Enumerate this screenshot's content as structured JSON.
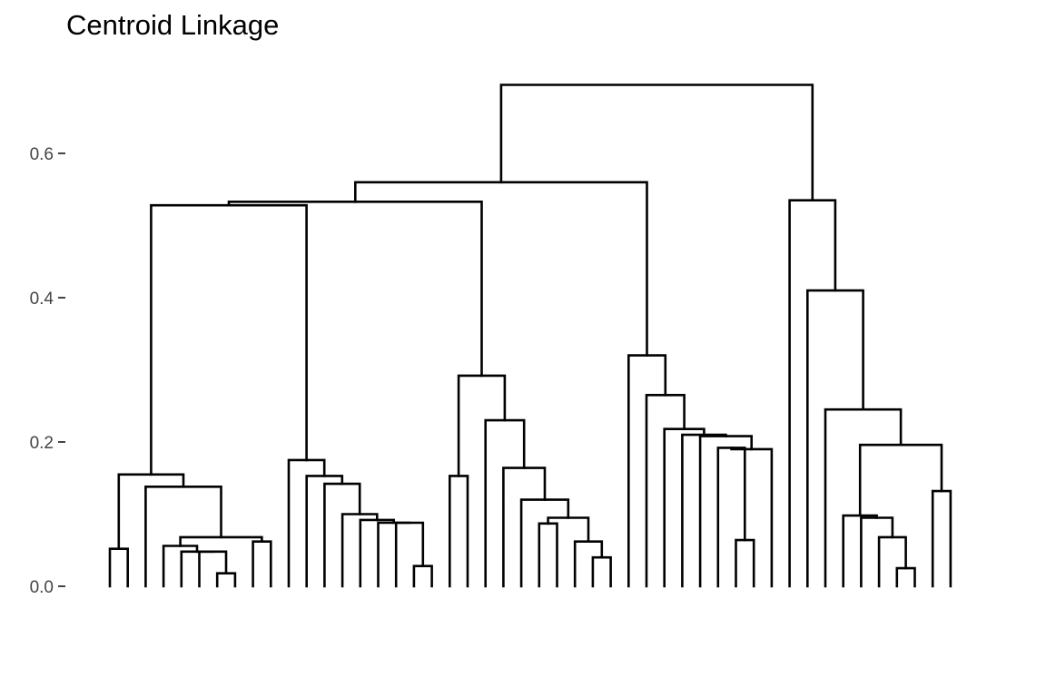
{
  "chart_data": {
    "type": "dendrogram",
    "title": "Centroid Linkage",
    "xlabel": "",
    "ylabel": "",
    "ylim": [
      0,
      0.7
    ],
    "grid": false,
    "y_ticks": [
      {
        "value": 0.0,
        "label": "0.0"
      },
      {
        "value": 0.2,
        "label": "0.2"
      },
      {
        "value": 0.4,
        "label": "0.4"
      },
      {
        "value": 0.6,
        "label": "0.6"
      }
    ],
    "leaf_count": 50,
    "tree": {
      "h": 0.695,
      "c": [
        {
          "h": 0.56,
          "c": [
            {
              "h": 0.533,
              "c": [
                {
                  "h": 0.528,
                  "c": [
                    {
                      "h": 0.155,
                      "c": [
                        {
                          "h": 0.052,
                          "c": [
                            {
                              "leaf": 1
                            },
                            {
                              "leaf": 2
                            }
                          ]
                        },
                        {
                          "h": 0.138,
                          "c": [
                            {
                              "leaf": 3
                            },
                            {
                              "h": 0.068,
                              "c": [
                                {
                                  "h": 0.056,
                                  "c": [
                                    {
                                      "leaf": 4
                                    },
                                    {
                                      "h": 0.048,
                                      "c": [
                                        {
                                          "leaf": 5
                                        },
                                        {
                                          "h": 0.048,
                                          "c": [
                                            {
                                              "leaf": 6
                                            },
                                            {
                                              "h": 0.018,
                                              "c": [
                                                {
                                                  "leaf": 7
                                                },
                                                {
                                                  "leaf": 8
                                                }
                                              ]
                                            }
                                          ]
                                        }
                                      ]
                                    }
                                  ]
                                },
                                {
                                  "h": 0.062,
                                  "c": [
                                    {
                                      "leaf": 9
                                    },
                                    {
                                      "leaf": 10
                                    }
                                  ]
                                }
                              ]
                            }
                          ]
                        }
                      ]
                    },
                    {
                      "h": 0.175,
                      "c": [
                        {
                          "leaf": 11
                        },
                        {
                          "h": 0.153,
                          "c": [
                            {
                              "leaf": 12
                            },
                            {
                              "h": 0.142,
                              "c": [
                                {
                                  "leaf": 13
                                },
                                {
                                  "h": 0.1,
                                  "c": [
                                    {
                                      "leaf": 14
                                    },
                                    {
                                      "h": 0.092,
                                      "c": [
                                        {
                                          "leaf": 15
                                        },
                                        {
                                          "h": 0.088,
                                          "c": [
                                            {
                                              "leaf": 16
                                            },
                                            {
                                              "h": 0.088,
                                              "c": [
                                                {
                                                  "leaf": 17
                                                },
                                                {
                                                  "h": 0.028,
                                                  "c": [
                                                    {
                                                      "leaf": 18
                                                    },
                                                    {
                                                      "leaf": 19
                                                    }
                                                  ]
                                                }
                                              ]
                                            }
                                          ]
                                        }
                                      ]
                                    }
                                  ]
                                }
                              ]
                            }
                          ]
                        }
                      ]
                    }
                  ]
                },
                {
                  "h": 0.292,
                  "c": [
                    {
                      "h": 0.153,
                      "c": [
                        {
                          "leaf": 20
                        },
                        {
                          "leaf": 21
                        }
                      ]
                    },
                    {
                      "h": 0.23,
                      "c": [
                        {
                          "leaf": 22
                        },
                        {
                          "h": 0.164,
                          "c": [
                            {
                              "leaf": 23
                            },
                            {
                              "h": 0.12,
                              "c": [
                                {
                                  "leaf": 24
                                },
                                {
                                  "h": 0.095,
                                  "c": [
                                    {
                                      "h": 0.087,
                                      "c": [
                                        {
                                          "leaf": 25
                                        },
                                        {
                                          "leaf": 26
                                        }
                                      ]
                                    },
                                    {
                                      "h": 0.062,
                                      "c": [
                                        {
                                          "leaf": 27
                                        },
                                        {
                                          "h": 0.04,
                                          "c": [
                                            {
                                              "leaf": 28
                                            },
                                            {
                                              "leaf": 29
                                            }
                                          ]
                                        }
                                      ]
                                    }
                                  ]
                                }
                              ]
                            }
                          ]
                        }
                      ]
                    }
                  ]
                }
              ]
            },
            {
              "h": 0.32,
              "c": [
                {
                  "leaf": 30
                },
                {
                  "h": 0.265,
                  "c": [
                    {
                      "leaf": 31
                    },
                    {
                      "h": 0.218,
                      "c": [
                        {
                          "leaf": 32
                        },
                        {
                          "h": 0.21,
                          "c": [
                            {
                              "leaf": 33
                            },
                            {
                              "h": 0.208,
                              "c": [
                                {
                                  "leaf": 34
                                },
                                {
                                  "h": 0.19,
                                  "c": [
                                    {
                                      "h": 0.192,
                                      "c": [
                                        {
                                          "leaf": 35
                                        },
                                        {
                                          "h": 0.064,
                                          "c": [
                                            {
                                              "leaf": 36
                                            },
                                            {
                                              "leaf": 37
                                            }
                                          ]
                                        }
                                      ]
                                    },
                                    {
                                      "leaf": 38
                                    }
                                  ]
                                }
                              ]
                            }
                          ]
                        }
                      ]
                    }
                  ]
                }
              ]
            }
          ]
        },
        {
          "h": 0.535,
          "c": [
            {
              "leaf": 39
            },
            {
              "h": 0.41,
              "c": [
                {
                  "leaf": 40
                },
                {
                  "h": 0.245,
                  "c": [
                    {
                      "leaf": 41
                    },
                    {
                      "h": 0.196,
                      "c": [
                        {
                          "h": 0.098,
                          "c": [
                            {
                              "leaf": 42
                            },
                            {
                              "h": 0.095,
                              "c": [
                                {
                                  "leaf": 43
                                },
                                {
                                  "h": 0.068,
                                  "c": [
                                    {
                                      "leaf": 44
                                    },
                                    {
                                      "h": 0.025,
                                      "c": [
                                        {
                                          "leaf": 45
                                        },
                                        {
                                          "leaf": 46
                                        }
                                      ]
                                    }
                                  ]
                                }
                              ]
                            }
                          ]
                        },
                        {
                          "h": 0.132,
                          "c": [
                            {
                              "leaf": 47
                            },
                            {
                              "leaf": 48
                            }
                          ]
                        }
                      ]
                    }
                  ]
                }
              ]
            }
          ]
        }
      ]
    }
  }
}
